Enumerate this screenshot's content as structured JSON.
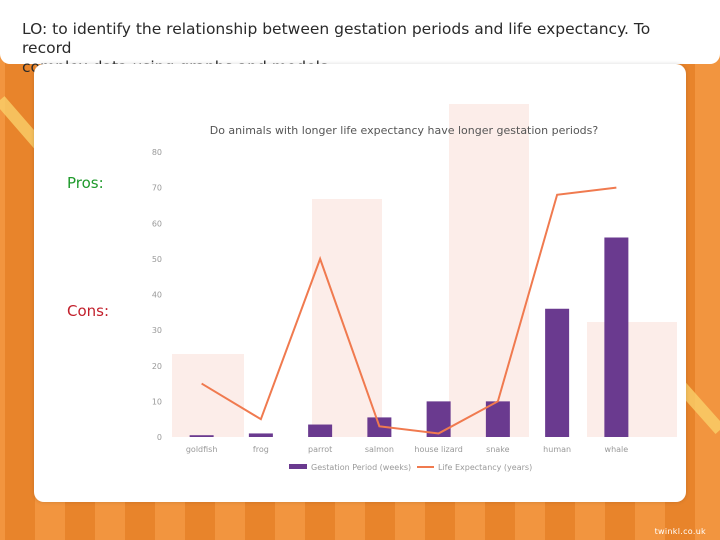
{
  "lo_text_line1": "LO: to identify the relationship between gestation periods and life expectancy. To record",
  "lo_text_line2": "complex data using graphs and models.",
  "pros_label": "Pros:",
  "cons_label": "Cons:",
  "watermark": "twinkl.co.uk",
  "colors": {
    "background": "#f2953f",
    "stripe_dark": "#e0761c",
    "stripe_light": "#f6a255",
    "bar": "#6a3a8f",
    "line": "#f07a4f",
    "pros": "#1f9a2c",
    "cons": "#c21f2b"
  },
  "chart_data": {
    "type": "bar",
    "title": "Do animals with longer life expectancy have longer gestation periods?",
    "categories": [
      "goldfish",
      "frog",
      "parrot",
      "salmon",
      "house lizard",
      "snake",
      "human",
      "whale"
    ],
    "series": [
      {
        "name": "Gestation Period (weeks)",
        "type": "bar",
        "values": [
          0.5,
          1,
          3.5,
          5.5,
          10,
          10,
          36,
          56
        ]
      },
      {
        "name": "Life Expectancy (years)",
        "type": "line",
        "values": [
          15,
          5,
          50,
          3,
          1,
          10,
          68,
          70
        ]
      }
    ],
    "yticks": [
      0,
      10,
      20,
      30,
      40,
      50,
      60,
      70,
      80
    ],
    "ylim": [
      0,
      80
    ],
    "grid": false,
    "legend_position": "bottom"
  }
}
